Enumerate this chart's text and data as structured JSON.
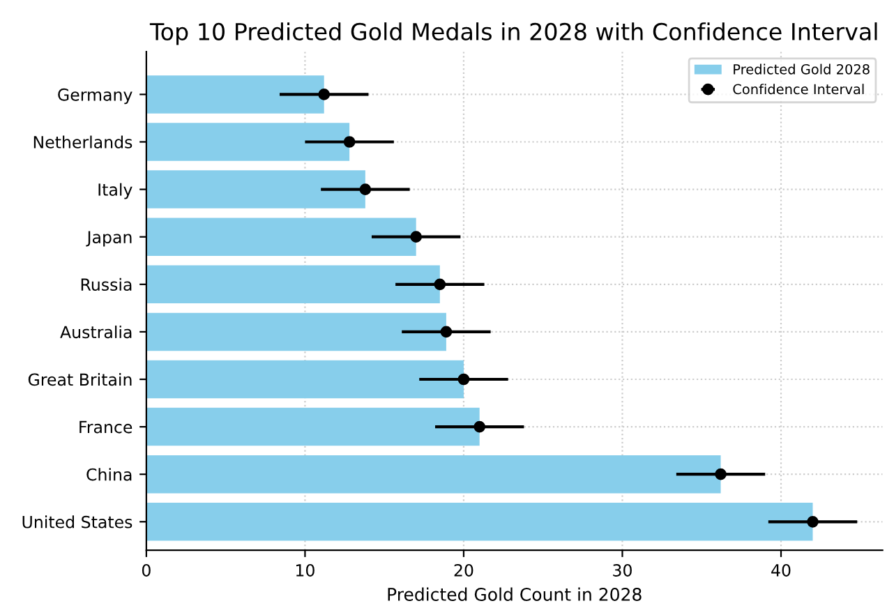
{
  "chart_data": {
    "type": "bar",
    "orientation": "horizontal",
    "title": "Top 10 Predicted Gold Medals in 2028 with Confidence Interval",
    "xlabel": "Predicted Gold Count in 2028",
    "categories": [
      "Germany",
      "Netherlands",
      "Italy",
      "Japan",
      "Russia",
      "Australia",
      "Great Britain",
      "France",
      "China",
      "United States"
    ],
    "series": [
      {
        "name": "Predicted Gold 2028",
        "color": "#87ceeb",
        "values": [
          11.2,
          12.8,
          13.8,
          17.0,
          18.5,
          18.9,
          20.0,
          21.0,
          36.2,
          42.0
        ]
      },
      {
        "name": "Confidence Interval",
        "type": "scatter",
        "color": "#000000",
        "marker": "circle",
        "values": [
          11.2,
          12.8,
          13.8,
          17.0,
          18.5,
          18.9,
          20.0,
          21.0,
          36.2,
          42.0
        ],
        "errors": [
          2.8,
          2.8,
          2.8,
          2.8,
          2.8,
          2.8,
          2.8,
          2.8,
          2.8,
          2.8
        ]
      }
    ],
    "xlim": [
      0,
      46.4
    ],
    "xticks": [
      0,
      10,
      20,
      30,
      40
    ],
    "grid": true,
    "legend": "top right"
  }
}
